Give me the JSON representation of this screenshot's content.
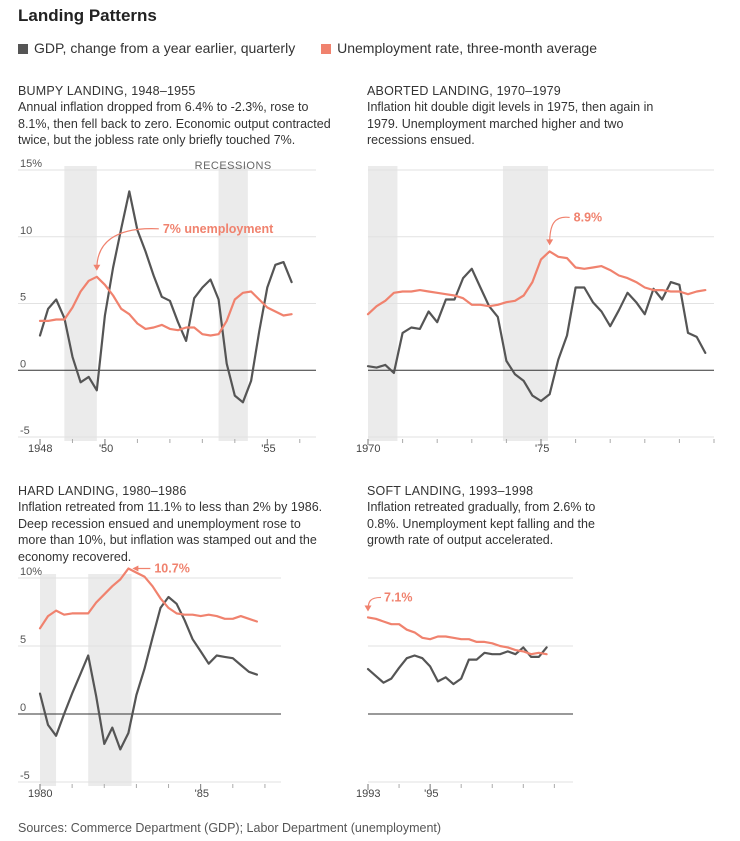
{
  "title": "Landing Patterns",
  "legend": {
    "gdp": "GDP, change from a year earlier, quarterly",
    "unemployment": "Unemployment rate, three-month average"
  },
  "colors": {
    "gdp": "#555555",
    "unemployment": "#f0826e",
    "recession": "#ebebeb",
    "grid": "#e2e2e2",
    "zero": "#333333"
  },
  "source": "Sources: Commerce Department (GDP); Labor Department (unemployment)",
  "panels": [
    {
      "title": "BUMPY LANDING, 1948–1955",
      "description": "Annual inflation dropped from 6.4% to -2.3%, rose to 8.1%, then fell back to zero. Economic output contracted twice, but the jobless rate only briefly touched 7%.",
      "recessions_label": "RECESSIONS",
      "annotation": "7% unemployment"
    },
    {
      "title": "ABORTED LANDING, 1970–1979",
      "description": "Inflation hit double digit levels in 1975, then again in 1979. Unemployment marched higher and two recessions ensued.",
      "annotation": "8.9%"
    },
    {
      "title": "HARD LANDING, 1980–1986",
      "description": "Inflation retreated from 11.1% to less than 2% by 1986. Deep recession ensued and unemployment rose to more than 10%, but inflation was stamped out and the economy recovered.",
      "annotation": "10.7%"
    },
    {
      "title": "SOFT LANDING, 1993–1998",
      "description": "Inflation retreated gradually, from 2.6% to 0.8%. Unemployment kept falling and the growth rate of output accelerated.",
      "annotation": "7.1%"
    }
  ],
  "chart_data": [
    {
      "type": "line",
      "title": "BUMPY LANDING, 1948–1955",
      "ylim": [
        -5,
        15
      ],
      "y_ticks": [
        "15%",
        "10",
        "5",
        "0",
        "-5"
      ],
      "x_ticks": [
        "1948",
        "'50",
        "'55"
      ],
      "x_tick_years": [
        1948,
        1950,
        1955
      ],
      "xlim": [
        1948,
        1956.5
      ],
      "recessions": [
        [
          1948.75,
          1949.75
        ],
        [
          1953.5,
          1954.4
        ]
      ],
      "series": [
        {
          "name": "GDP, change from a year earlier, quarterly",
          "x": [
            1948.0,
            1948.25,
            1948.5,
            1948.75,
            1949.0,
            1949.25,
            1949.5,
            1949.75,
            1950.0,
            1950.25,
            1950.5,
            1950.75,
            1951.0,
            1951.25,
            1951.5,
            1951.75,
            1952.0,
            1952.25,
            1952.5,
            1952.75,
            1953.0,
            1953.25,
            1953.5,
            1953.75,
            1954.0,
            1954.25,
            1954.5,
            1954.75,
            1955.0,
            1955.25,
            1955.5,
            1955.75
          ],
          "y": [
            2.6,
            4.6,
            5.3,
            3.9,
            1.0,
            -0.9,
            -0.5,
            -1.5,
            4.1,
            7.7,
            10.6,
            13.4,
            10.5,
            8.9,
            7.1,
            5.5,
            5.2,
            3.6,
            2.2,
            5.4,
            6.2,
            6.8,
            5.3,
            0.5,
            -1.9,
            -2.4,
            -0.8,
            2.9,
            6.2,
            7.9,
            8.1,
            6.6
          ]
        },
        {
          "name": "Unemployment rate, three-month average",
          "x": [
            1948.0,
            1948.25,
            1948.5,
            1948.75,
            1949.0,
            1949.25,
            1949.5,
            1949.75,
            1950.0,
            1950.25,
            1950.5,
            1950.75,
            1951.0,
            1951.25,
            1951.5,
            1951.75,
            1952.0,
            1952.25,
            1952.5,
            1952.75,
            1953.0,
            1953.25,
            1953.5,
            1953.75,
            1954.0,
            1954.25,
            1954.5,
            1954.75,
            1955.0,
            1955.25,
            1955.5,
            1955.75
          ],
          "y": [
            3.7,
            3.7,
            3.8,
            3.8,
            4.7,
            5.9,
            6.7,
            7.0,
            6.4,
            5.6,
            4.6,
            4.2,
            3.5,
            3.1,
            3.2,
            3.4,
            3.1,
            3.0,
            3.2,
            3.2,
            2.7,
            2.6,
            2.7,
            3.7,
            5.3,
            5.8,
            5.9,
            5.3,
            4.7,
            4.4,
            4.1,
            4.2
          ]
        }
      ],
      "annotation": {
        "text": "7% unemployment",
        "x": 1949.75,
        "y": 7.0
      }
    },
    {
      "type": "line",
      "title": "ABORTED LANDING, 1970–1979",
      "ylim": [
        -5,
        15
      ],
      "x_ticks": [
        "1970",
        "'75"
      ],
      "x_tick_years": [
        1970,
        1975
      ],
      "xlim": [
        1970,
        1980
      ],
      "recessions": [
        [
          1970.0,
          1970.85
        ],
        [
          1973.9,
          1975.2
        ]
      ],
      "series": [
        {
          "name": "GDP, change from a year earlier, quarterly",
          "x": [
            1970.0,
            1970.25,
            1970.5,
            1970.75,
            1971.0,
            1971.25,
            1971.5,
            1971.75,
            1972.0,
            1972.25,
            1972.5,
            1972.75,
            1973.0,
            1973.25,
            1973.5,
            1973.75,
            1974.0,
            1974.25,
            1974.5,
            1974.75,
            1975.0,
            1975.25,
            1975.5,
            1975.75,
            1976.0,
            1976.25,
            1976.5,
            1976.75,
            1977.0,
            1977.25,
            1977.5,
            1977.75,
            1978.0,
            1978.25,
            1978.5,
            1978.75,
            1979.0,
            1979.25,
            1979.5,
            1979.75
          ],
          "y": [
            0.3,
            0.2,
            0.4,
            -0.2,
            2.8,
            3.2,
            3.1,
            4.4,
            3.6,
            5.3,
            5.3,
            6.9,
            7.6,
            6.2,
            4.8,
            4.0,
            0.7,
            -0.3,
            -0.8,
            -1.9,
            -2.3,
            -1.8,
            0.8,
            2.6,
            6.2,
            6.2,
            5.1,
            4.4,
            3.3,
            4.5,
            5.8,
            5.1,
            4.2,
            6.1,
            5.3,
            6.6,
            6.4,
            2.8,
            2.5,
            1.3
          ]
        },
        {
          "name": "Unemployment rate, three-month average",
          "x": [
            1970.0,
            1970.25,
            1970.5,
            1970.75,
            1971.0,
            1971.25,
            1971.5,
            1971.75,
            1972.0,
            1972.25,
            1972.5,
            1972.75,
            1973.0,
            1973.25,
            1973.5,
            1973.75,
            1974.0,
            1974.25,
            1974.5,
            1974.75,
            1975.0,
            1975.25,
            1975.5,
            1975.75,
            1976.0,
            1976.25,
            1976.5,
            1976.75,
            1977.0,
            1977.25,
            1977.5,
            1977.75,
            1978.0,
            1978.25,
            1978.5,
            1978.75,
            1979.0,
            1979.25,
            1979.5,
            1979.75
          ],
          "y": [
            4.2,
            4.8,
            5.2,
            5.8,
            5.9,
            5.9,
            6.0,
            5.9,
            5.8,
            5.7,
            5.6,
            5.4,
            4.9,
            4.9,
            4.8,
            4.9,
            5.1,
            5.2,
            5.6,
            6.6,
            8.3,
            8.9,
            8.5,
            8.4,
            7.7,
            7.6,
            7.7,
            7.8,
            7.5,
            7.1,
            6.9,
            6.6,
            6.2,
            6.0,
            6.0,
            5.9,
            5.9,
            5.7,
            5.9,
            6.0
          ]
        }
      ],
      "annotation": {
        "text": "8.9%",
        "x": 1975.25,
        "y": 8.9
      }
    },
    {
      "type": "line",
      "title": "HARD LANDING, 1980–1986",
      "ylim": [
        -5,
        10
      ],
      "y_ticks": [
        "10%",
        "5",
        "0",
        "-5"
      ],
      "x_ticks": [
        "1980",
        "'85"
      ],
      "x_tick_years": [
        1980,
        1985
      ],
      "xlim": [
        1980,
        1987.5
      ],
      "recessions": [
        [
          1980.0,
          1980.5
        ],
        [
          1981.5,
          1982.85
        ]
      ],
      "series": [
        {
          "name": "GDP, change from a year earlier, quarterly",
          "x": [
            1980.0,
            1980.25,
            1980.5,
            1980.75,
            1981.0,
            1981.25,
            1981.5,
            1981.75,
            1982.0,
            1982.25,
            1982.5,
            1982.75,
            1983.0,
            1983.25,
            1983.5,
            1983.75,
            1984.0,
            1984.25,
            1984.5,
            1984.75,
            1985.0,
            1985.25,
            1985.5,
            1985.75,
            1986.0,
            1986.25,
            1986.5,
            1986.75
          ],
          "y": [
            1.5,
            -0.8,
            -1.6,
            0.0,
            1.5,
            2.9,
            4.3,
            1.3,
            -2.2,
            -1.0,
            -2.6,
            -1.4,
            1.4,
            3.3,
            5.6,
            7.8,
            8.6,
            8.1,
            6.9,
            5.5,
            4.6,
            3.7,
            4.3,
            4.2,
            4.1,
            3.6,
            3.1,
            2.9
          ]
        },
        {
          "name": "Unemployment rate, three-month average",
          "x": [
            1980.0,
            1980.25,
            1980.5,
            1980.75,
            1981.0,
            1981.25,
            1981.5,
            1981.75,
            1982.0,
            1982.25,
            1982.5,
            1982.75,
            1983.0,
            1983.25,
            1983.5,
            1983.75,
            1984.0,
            1984.25,
            1984.5,
            1984.75,
            1985.0,
            1985.25,
            1985.5,
            1985.75,
            1986.0,
            1986.25,
            1986.5,
            1986.75
          ],
          "y": [
            6.3,
            7.2,
            7.6,
            7.3,
            7.4,
            7.4,
            7.4,
            8.2,
            8.8,
            9.4,
            9.9,
            10.7,
            10.4,
            10.1,
            9.4,
            8.5,
            7.8,
            7.4,
            7.3,
            7.3,
            7.2,
            7.3,
            7.2,
            7.0,
            7.0,
            7.2,
            7.0,
            6.8
          ]
        }
      ],
      "annotation": {
        "text": "10.7%",
        "x": 1982.75,
        "y": 10.7
      }
    },
    {
      "type": "line",
      "title": "SOFT LANDING, 1993–1998",
      "ylim": [
        -5,
        10
      ],
      "x_ticks": [
        "1993",
        "'95"
      ],
      "x_tick_years": [
        1993,
        1995
      ],
      "xlim": [
        1993,
        1999.6
      ],
      "recessions": [],
      "series": [
        {
          "name": "GDP, change from a year earlier, quarterly",
          "x": [
            1993.0,
            1993.25,
            1993.5,
            1993.75,
            1994.0,
            1994.25,
            1994.5,
            1994.75,
            1995.0,
            1995.25,
            1995.5,
            1995.75,
            1996.0,
            1996.25,
            1996.5,
            1996.75,
            1997.0,
            1997.25,
            1997.5,
            1997.75,
            1998.0,
            1998.25,
            1998.5,
            1998.75
          ],
          "y": [
            3.3,
            2.8,
            2.3,
            2.6,
            3.4,
            4.1,
            4.3,
            4.1,
            3.5,
            2.4,
            2.7,
            2.2,
            2.6,
            4.0,
            4.0,
            4.5,
            4.4,
            4.4,
            4.6,
            4.4,
            4.9,
            4.2,
            4.2,
            4.9
          ]
        },
        {
          "name": "Unemployment rate, three-month average",
          "x": [
            1993.0,
            1993.25,
            1993.5,
            1993.75,
            1994.0,
            1994.25,
            1994.5,
            1994.75,
            1995.0,
            1995.25,
            1995.5,
            1995.75,
            1996.0,
            1996.25,
            1996.5,
            1996.75,
            1997.0,
            1997.25,
            1997.5,
            1997.75,
            1998.0,
            1998.25,
            1998.5,
            1998.75
          ],
          "y": [
            7.1,
            7.0,
            6.8,
            6.6,
            6.6,
            6.2,
            6.0,
            5.6,
            5.5,
            5.7,
            5.7,
            5.6,
            5.5,
            5.5,
            5.3,
            5.3,
            5.2,
            5.0,
            4.9,
            4.7,
            4.6,
            4.4,
            4.5,
            4.4
          ]
        }
      ],
      "annotation": {
        "text": "7.1%",
        "x": 1993.0,
        "y": 7.1
      }
    }
  ]
}
